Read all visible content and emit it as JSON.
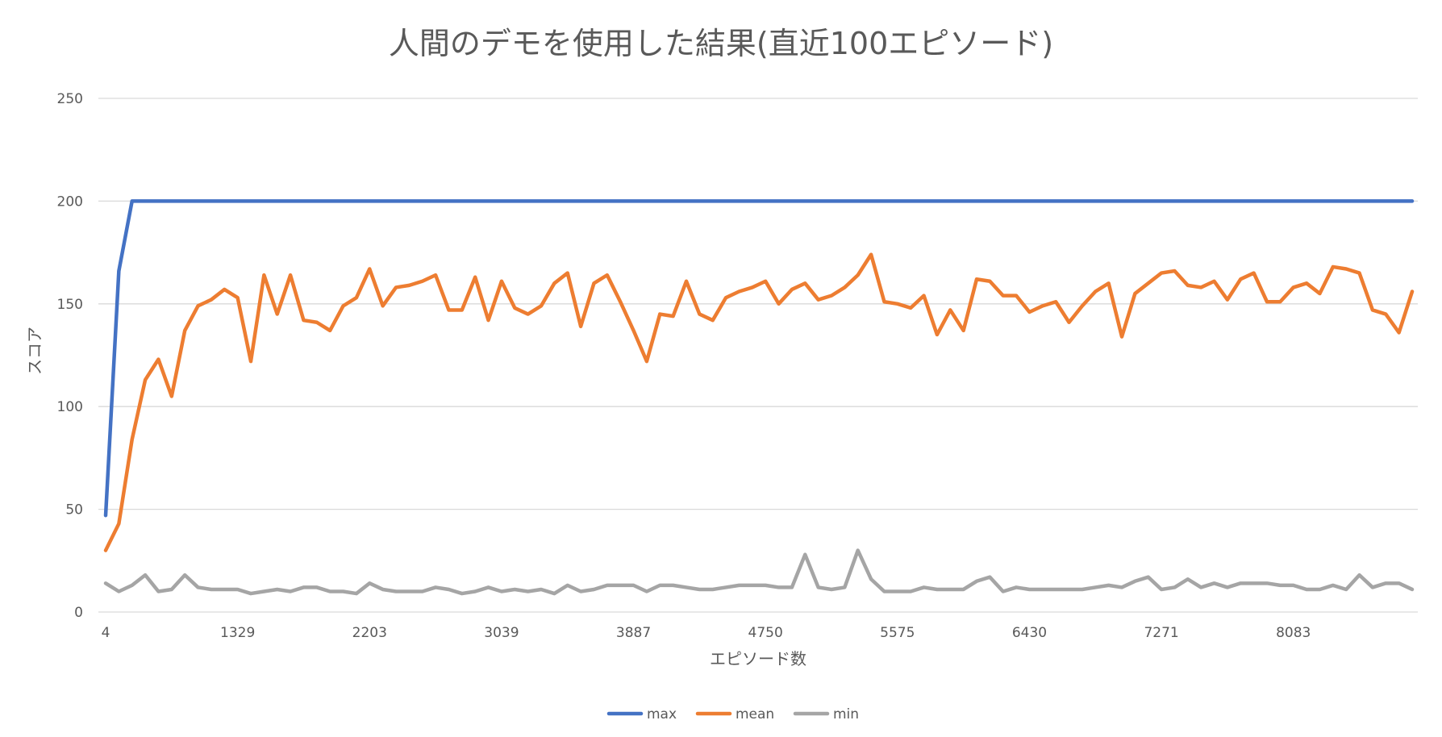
{
  "chart_data": {
    "type": "line",
    "title": "人間のデモを使用した結果(直近100エピソード)",
    "xlabel": "エピソード数",
    "ylabel": "スコア",
    "ylim": [
      0,
      250
    ],
    "yticks": [
      0,
      50,
      100,
      150,
      200,
      250
    ],
    "x_tick_labels": [
      "4",
      "1329",
      "2203",
      "3039",
      "3887",
      "4750",
      "5575",
      "6430",
      "7271",
      "8083"
    ],
    "x_tick_every": 10,
    "grid": "horizontal",
    "legend_position": "bottom",
    "series": [
      {
        "name": "max",
        "color": "#4472c4",
        "values": [
          47,
          166,
          200,
          200,
          200,
          200,
          200,
          200,
          200,
          200,
          200,
          200,
          200,
          200,
          200,
          200,
          200,
          200,
          200,
          200,
          200,
          200,
          200,
          200,
          200,
          200,
          200,
          200,
          200,
          200,
          200,
          200,
          200,
          200,
          200,
          200,
          200,
          200,
          200,
          200,
          200,
          200,
          200,
          200,
          200,
          200,
          200,
          200,
          200,
          200,
          200,
          200,
          200,
          200,
          200,
          200,
          200,
          200,
          200,
          200,
          200,
          200,
          200,
          200,
          200,
          200,
          200,
          200,
          200,
          200,
          200,
          200,
          200,
          200,
          200,
          200,
          200,
          200,
          200,
          200,
          200,
          200,
          200,
          200,
          200,
          200,
          200,
          200,
          200,
          200,
          200,
          200,
          200,
          200,
          200,
          200,
          200,
          200,
          200,
          200
        ]
      },
      {
        "name": "mean",
        "color": "#ed7d31",
        "values": [
          30,
          43,
          84,
          113,
          123,
          105,
          137,
          149,
          152,
          157,
          153,
          122,
          164,
          145,
          164,
          142,
          141,
          137,
          149,
          153,
          167,
          149,
          158,
          159,
          161,
          164,
          147,
          147,
          163,
          142,
          161,
          148,
          145,
          149,
          160,
          165,
          139,
          160,
          164,
          151,
          137,
          122,
          145,
          144,
          161,
          145,
          142,
          153,
          156,
          158,
          161,
          150,
          157,
          160,
          152,
          154,
          158,
          164,
          174,
          151,
          150,
          148,
          154,
          135,
          147,
          137,
          162,
          161,
          154,
          154,
          146,
          149,
          151,
          141,
          149,
          156,
          160,
          134,
          155,
          160,
          165,
          166,
          159,
          158,
          161,
          152,
          162,
          165,
          151,
          151,
          158,
          160,
          155,
          168,
          167,
          165,
          147,
          145,
          136,
          156
        ]
      },
      {
        "name": "min",
        "color": "#a5a5a5",
        "values": [
          14,
          10,
          13,
          18,
          10,
          11,
          18,
          12,
          11,
          11,
          11,
          9,
          10,
          11,
          10,
          12,
          12,
          10,
          10,
          9,
          14,
          11,
          10,
          10,
          10,
          12,
          11,
          9,
          10,
          12,
          10,
          11,
          10,
          11,
          9,
          13,
          10,
          11,
          13,
          13,
          13,
          10,
          13,
          13,
          12,
          11,
          11,
          12,
          13,
          13,
          13,
          12,
          12,
          28,
          12,
          11,
          12,
          30,
          16,
          10,
          10,
          10,
          12,
          11,
          11,
          11,
          15,
          17,
          10,
          12,
          11,
          11,
          11,
          11,
          11,
          12,
          13,
          12,
          15,
          17,
          11,
          12,
          16,
          12,
          14,
          12,
          14,
          14,
          14,
          13,
          13,
          11,
          11,
          13,
          11,
          18,
          12,
          14,
          14,
          11
        ]
      }
    ]
  }
}
